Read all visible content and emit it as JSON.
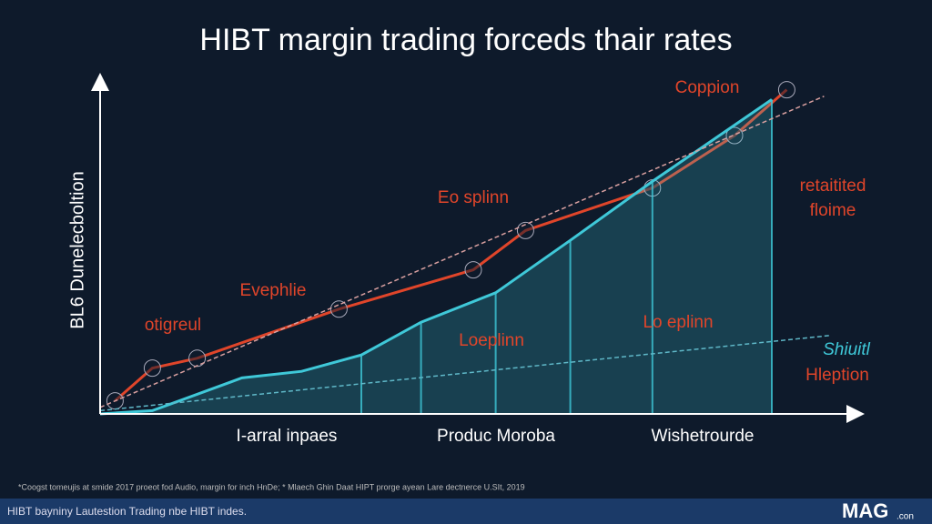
{
  "chart_data": {
    "type": "line",
    "title": "HIBT margin trading forceds thair rates",
    "y_label": "BL6 Dunelecboltion",
    "xlim": [
      0,
      100
    ],
    "ylim": [
      0,
      100
    ],
    "categories": [
      "I-arral inpaes",
      "Produc Moroba",
      "Wishetrourde"
    ],
    "series": [
      {
        "color": "#e0452a",
        "x": [
          2,
          7,
          13,
          32,
          50,
          57,
          74,
          85,
          92
        ],
        "values": [
          4,
          14,
          17,
          32,
          44,
          56,
          69,
          85,
          99
        ]
      },
      {
        "color": "#3fc8d8",
        "fill": true,
        "x": [
          0,
          7,
          19,
          27,
          35,
          43,
          53,
          63,
          74,
          90
        ],
        "values": [
          0,
          1,
          11,
          13,
          18,
          28,
          37,
          53,
          71,
          96
        ]
      },
      {
        "color": "#d9a0a0",
        "dashed": true,
        "x": [
          0,
          97
        ],
        "values": [
          2,
          97
        ]
      },
      {
        "color": "#5fb8c8",
        "dashed": true,
        "x": [
          0,
          98
        ],
        "values": [
          1,
          24
        ]
      }
    ],
    "annotations": [
      "Coppion",
      "Eo splinn",
      "retaitited",
      "floime",
      "Evephlie",
      "otigreul",
      "Loeplinn",
      "Lo eplinn",
      "Shiuitl",
      "Hleption"
    ],
    "footnote": "*Coogst tomeujis at smide 2017 proeot fod Audio, margin for inch HnDe; * Mlaech Ghin Daat HIPT prorge ayean Lare dectnerce U.SIt, 2019",
    "footer": {
      "text": "HIBT bayniny Lautestion Trading nbe HIBT indes.",
      "logo": "MAG",
      "logo_suffix": ".con"
    }
  }
}
